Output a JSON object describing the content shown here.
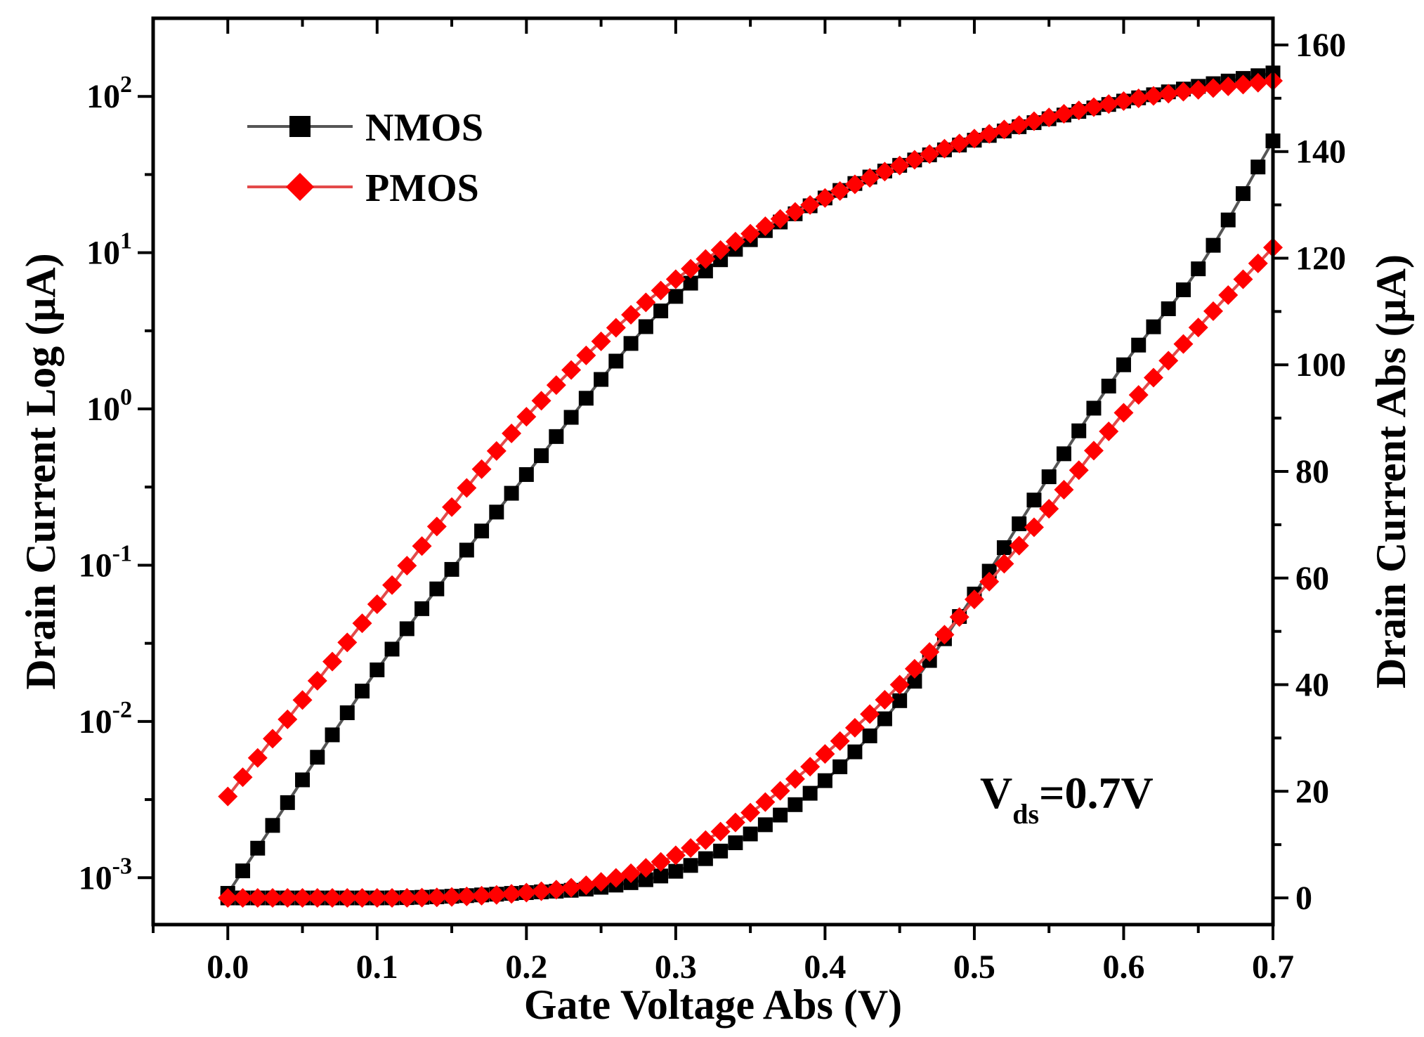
{
  "chart_data": {
    "type": "line",
    "xlabel": "Gate Voltage Abs (V)",
    "ylabel_left": "Drain Current Log (μA)",
    "ylabel_right": "Drain Current Abs (μA)",
    "annotation": {
      "base": "V",
      "sub": "ds",
      "rest": "=0.7V"
    },
    "xlim": [
      -0.05,
      0.7
    ],
    "xticks": [
      "0.0",
      "0.1",
      "0.2",
      "0.3",
      "0.4",
      "0.5",
      "0.6",
      "0.7"
    ],
    "ylim_left_log10": [
      -3.3,
      2.5
    ],
    "yticks_left": [
      {
        "base": "10",
        "exp": "-3"
      },
      {
        "base": "10",
        "exp": "-2"
      },
      {
        "base": "10",
        "exp": "-1"
      },
      {
        "base": "10",
        "exp": "0"
      },
      {
        "base": "10",
        "exp": "1"
      },
      {
        "base": "10",
        "exp": "2"
      }
    ],
    "ylim_right": [
      -5,
      165
    ],
    "yticks_right": [
      "0",
      "20",
      "40",
      "60",
      "80",
      "100",
      "120",
      "140",
      "160"
    ],
    "legend_position": "top-left",
    "series": [
      {
        "name": "NMOS",
        "color": "#000000",
        "line_color": "#555555",
        "marker": "square",
        "axis": "left",
        "x": [
          0.0,
          0.1,
          0.2,
          0.3,
          0.4,
          0.5,
          0.6,
          0.7
        ],
        "log10": [
          -3.1,
          -1.67,
          -0.42,
          0.72,
          1.35,
          1.72,
          1.97,
          2.15
        ]
      },
      {
        "name": "PMOS",
        "color": "#ff0000",
        "line_color": "#e34a4a",
        "marker": "diamond",
        "axis": "left",
        "x": [
          0.0,
          0.1,
          0.2,
          0.3,
          0.4,
          0.5,
          0.6,
          0.7
        ],
        "log10": [
          -2.48,
          -1.25,
          -0.05,
          0.83,
          1.35,
          1.73,
          1.97,
          2.1
        ]
      },
      {
        "name": "NMOS",
        "color": "#000000",
        "line_color": "#555555",
        "marker": "square",
        "axis": "right",
        "x": [
          0.0,
          0.1,
          0.2,
          0.25,
          0.3,
          0.35,
          0.4,
          0.45,
          0.5,
          0.55,
          0.6,
          0.65,
          0.7
        ],
        "value": [
          0,
          0,
          1,
          2,
          5,
          12,
          22,
          37,
          57,
          79,
          100,
          118,
          142
        ]
      },
      {
        "name": "PMOS",
        "color": "#ff0000",
        "line_color": "#e34a4a",
        "marker": "diamond",
        "axis": "right",
        "x": [
          0.0,
          0.1,
          0.2,
          0.25,
          0.3,
          0.35,
          0.4,
          0.45,
          0.5,
          0.55,
          0.6,
          0.65,
          0.7
        ],
        "value": [
          0,
          0,
          1,
          3,
          8,
          16,
          27,
          40,
          56,
          73,
          91,
          107,
          122
        ]
      }
    ]
  }
}
